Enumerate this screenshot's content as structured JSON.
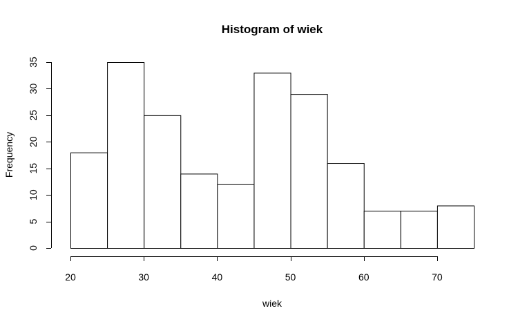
{
  "chart_data": {
    "type": "bar",
    "title": "Histogram of wiek",
    "xlabel": "wiek",
    "ylabel": "Frequency",
    "bins": [
      {
        "start": 20,
        "end": 25,
        "count": 18
      },
      {
        "start": 25,
        "end": 30,
        "count": 35
      },
      {
        "start": 30,
        "end": 35,
        "count": 25
      },
      {
        "start": 35,
        "end": 40,
        "count": 14
      },
      {
        "start": 40,
        "end": 45,
        "count": 12
      },
      {
        "start": 45,
        "end": 50,
        "count": 33
      },
      {
        "start": 50,
        "end": 55,
        "count": 29
      },
      {
        "start": 55,
        "end": 60,
        "count": 16
      },
      {
        "start": 60,
        "end": 65,
        "count": 7
      },
      {
        "start": 65,
        "end": 70,
        "count": 7
      },
      {
        "start": 70,
        "end": 75,
        "count": 8
      }
    ],
    "xlim": [
      20,
      75
    ],
    "ylim": [
      0,
      35
    ],
    "x_ticks": [
      20,
      30,
      40,
      50,
      60,
      70
    ],
    "y_ticks": [
      0,
      5,
      10,
      15,
      20,
      25,
      30,
      35
    ],
    "grid": false,
    "bar_fill": "#ffffff",
    "bar_stroke": "#000000"
  }
}
